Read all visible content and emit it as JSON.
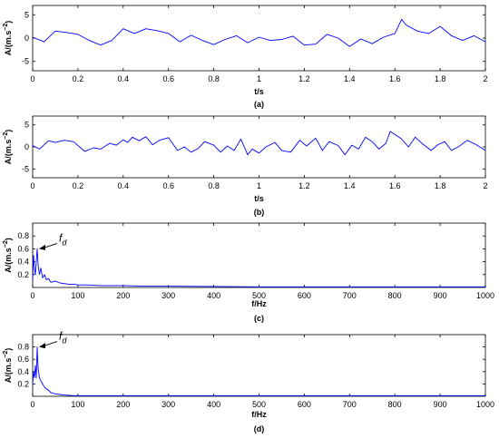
{
  "chart_data": [
    {
      "type": "line",
      "ylabel": "A/(m.s",
      "ylabel_exp": "−2",
      "ylabel_close": ")",
      "xlabel": "t/s",
      "caption": "(a)",
      "xlim": [
        0,
        2
      ],
      "ylim": [
        -7,
        7
      ],
      "xticks": [
        "0",
        "0.2",
        "0.4",
        "0.6",
        "0.8",
        "1",
        "1.2",
        "1.4",
        "1.6",
        "1.8",
        "2"
      ],
      "yticks": [
        "5",
        "0",
        "-5"
      ],
      "line_color": "#0000ff",
      "annotation": null,
      "series": [
        {
          "x": [
            0,
            0.05,
            0.1,
            0.15,
            0.2,
            0.25,
            0.3,
            0.35,
            0.4,
            0.45,
            0.5,
            0.55,
            0.6,
            0.65,
            0.7,
            0.75,
            0.8,
            0.85,
            0.9,
            0.95,
            1,
            1.05,
            1.1,
            1.15,
            1.2,
            1.25,
            1.3,
            1.35,
            1.4,
            1.45,
            1.5,
            1.55,
            1.6,
            1.63,
            1.65,
            1.7,
            1.75,
            1.8,
            1.85,
            1.9,
            1.95,
            2
          ],
          "y": [
            0.2,
            -0.8,
            1.5,
            1.2,
            0.8,
            -0.5,
            -1.5,
            -0.5,
            2,
            1,
            2,
            1.6,
            1,
            -0.8,
            0.6,
            -0.5,
            -1.4,
            -0.3,
            0.5,
            -1,
            0.2,
            -0.5,
            -0.3,
            0.4,
            -1.5,
            -1.3,
            0.8,
            0,
            -1.8,
            -0.2,
            -1.2,
            0.2,
            1,
            4,
            2.8,
            1.5,
            1,
            2.5,
            0.5,
            -0.5,
            0.5,
            -0.8
          ]
        }
      ]
    },
    {
      "type": "line",
      "ylabel": "A/(m.s",
      "ylabel_exp": "−2",
      "ylabel_close": ")",
      "xlabel": "t/s",
      "caption": "(b)",
      "xlim": [
        0,
        2
      ],
      "ylim": [
        -7,
        7
      ],
      "xticks": [
        "0",
        "0.2",
        "0.4",
        "0.6",
        "0.8",
        "1",
        "1.2",
        "1.4",
        "1.6",
        "1.8",
        "2"
      ],
      "yticks": [
        "5",
        "0",
        "-5"
      ],
      "line_color": "#0000ff",
      "annotation": null,
      "series": [
        {
          "x": [
            0,
            0.03,
            0.07,
            0.1,
            0.14,
            0.18,
            0.23,
            0.27,
            0.3,
            0.34,
            0.37,
            0.4,
            0.42,
            0.44,
            0.47,
            0.5,
            0.53,
            0.56,
            0.6,
            0.64,
            0.67,
            0.7,
            0.73,
            0.76,
            0.8,
            0.83,
            0.86,
            0.89,
            0.92,
            0.95,
            0.97,
            1,
            1.03,
            1.07,
            1.1,
            1.14,
            1.18,
            1.21,
            1.25,
            1.28,
            1.31,
            1.35,
            1.38,
            1.41,
            1.44,
            1.47,
            1.5,
            1.53,
            1.56,
            1.58,
            1.61,
            1.63,
            1.66,
            1.69,
            1.72,
            1.76,
            1.79,
            1.82,
            1.85,
            1.88,
            1.92,
            1.96,
            2
          ],
          "y": [
            0.3,
            -0.5,
            1.4,
            1,
            1.5,
            1.2,
            -1,
            -0.2,
            -0.5,
            0.8,
            0.4,
            1.6,
            1,
            2.2,
            1.4,
            2.3,
            0.5,
            1.5,
            2.1,
            -0.8,
            0,
            -1.2,
            -0.4,
            1.2,
            0.4,
            -1.2,
            0.2,
            -0.8,
            1.8,
            -1.8,
            -0.5,
            -1.4,
            0,
            1,
            -0.8,
            -1.2,
            1.5,
            0.2,
            2,
            -0.8,
            1.2,
            0.3,
            -1.8,
            0.4,
            -0.5,
            2.2,
            1.2,
            -0.5,
            0.8,
            3.5,
            2.5,
            1.8,
            0,
            2.2,
            0.8,
            -0.8,
            0.5,
            1.2,
            -0.8,
            0,
            1.5,
            0.5,
            -0.8
          ]
        }
      ]
    },
    {
      "type": "line",
      "ylabel": "A/(m.s",
      "ylabel_exp": "−2",
      "ylabel_close": ")",
      "xlabel": "f/Hz",
      "caption": "(c)",
      "xlim": [
        0,
        1000
      ],
      "ylim": [
        0,
        1
      ],
      "xticks": [
        "0",
        "100",
        "200",
        "300",
        "400",
        "500",
        "600",
        "700",
        "800",
        "900",
        "1000"
      ],
      "yticks": [
        "0.2",
        "0.4",
        "0.6",
        "0.8"
      ],
      "line_color": "#0000ff",
      "annotation": {
        "text": "f",
        "sub": "d",
        "x": 10,
        "y": 0.6
      },
      "series": [
        {
          "x": [
            0,
            2,
            4,
            6,
            8,
            10,
            12,
            15,
            18,
            22,
            26,
            30,
            35,
            40,
            50,
            60,
            70,
            80,
            90,
            100,
            120,
            150,
            200,
            250,
            300,
            400,
            500,
            600,
            700,
            800,
            900,
            1000
          ],
          "y": [
            0.1,
            0.5,
            0.3,
            0.2,
            0.4,
            0.6,
            0.35,
            0.2,
            0.3,
            0.15,
            0.2,
            0.12,
            0.14,
            0.08,
            0.1,
            0.07,
            0.06,
            0.05,
            0.05,
            0.04,
            0.04,
            0.03,
            0.03,
            0.02,
            0.02,
            0.015,
            0.01,
            0.01,
            0.01,
            0.01,
            0.01,
            0.01
          ]
        }
      ]
    },
    {
      "type": "line",
      "ylabel": "A/(m.s",
      "ylabel_exp": "−2",
      "ylabel_close": ")",
      "xlabel": "f/Hz",
      "caption": "(d)",
      "xlim": [
        0,
        1000
      ],
      "ylim": [
        0,
        1
      ],
      "xticks": [
        "0",
        "100",
        "200",
        "300",
        "400",
        "500",
        "600",
        "700",
        "800",
        "900",
        "1000"
      ],
      "yticks": [
        "0.2",
        "0.4",
        "0.6",
        "0.8"
      ],
      "line_color": "#0000ff",
      "annotation": {
        "text": "f",
        "sub": "d",
        "x": 10,
        "y": 0.8
      },
      "series": [
        {
          "x": [
            0,
            2,
            4,
            6,
            8,
            10,
            12,
            15,
            18,
            22,
            26,
            30,
            35,
            40,
            50,
            60,
            70,
            80,
            90,
            100,
            150,
            200,
            300,
            400,
            500,
            600,
            700,
            800,
            900,
            1000
          ],
          "y": [
            0.2,
            0.4,
            0.3,
            0.5,
            0.3,
            0.8,
            0.45,
            0.3,
            0.25,
            0.2,
            0.15,
            0.12,
            0.1,
            0.06,
            0.04,
            0.03,
            0.02,
            0.015,
            0.01,
            0.01,
            0.01,
            0.01,
            0.01,
            0.01,
            0.01,
            0.01,
            0.01,
            0.01,
            0.01,
            0.01
          ]
        }
      ]
    }
  ]
}
